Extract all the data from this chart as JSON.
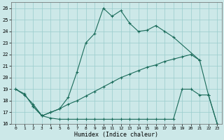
{
  "xlabel": "Humidex (Indice chaleur)",
  "bg_color": "#cce8e8",
  "grid_color": "#99cccc",
  "line_color": "#1a6b5a",
  "xlim": [
    -0.5,
    23.5
  ],
  "ylim": [
    16,
    26.5
  ],
  "xticks": [
    0,
    1,
    2,
    3,
    4,
    5,
    6,
    7,
    8,
    9,
    10,
    11,
    12,
    13,
    14,
    15,
    16,
    17,
    18,
    19,
    20,
    21,
    22,
    23
  ],
  "yticks": [
    16,
    17,
    18,
    19,
    20,
    21,
    22,
    23,
    24,
    25,
    26
  ],
  "line1_x": [
    0,
    1,
    2,
    3,
    4,
    5,
    6,
    7,
    8,
    9,
    10,
    11,
    12,
    13,
    14,
    15,
    16,
    17,
    18,
    21
  ],
  "line1_y": [
    19.0,
    18.6,
    17.5,
    16.7,
    17.0,
    17.3,
    18.3,
    20.5,
    23.0,
    23.8,
    26.0,
    25.3,
    25.8,
    24.7,
    24.0,
    24.1,
    24.5,
    24.0,
    23.5,
    21.5
  ],
  "line2_x": [
    0,
    1,
    2,
    3,
    4,
    5,
    6,
    7,
    8,
    9,
    10,
    11,
    12,
    13,
    14,
    15,
    16,
    17,
    18,
    19,
    20,
    21,
    22,
    23
  ],
  "line2_y": [
    19.0,
    18.5,
    17.7,
    16.7,
    17.0,
    17.3,
    17.7,
    18.0,
    18.4,
    18.8,
    19.2,
    19.6,
    20.0,
    20.3,
    20.6,
    20.9,
    21.1,
    21.4,
    21.6,
    21.8,
    22.0,
    21.5,
    18.5,
    16.0
  ],
  "line3_x": [
    2,
    3,
    4,
    5,
    6,
    7,
    8,
    9,
    10,
    11,
    12,
    13,
    14,
    15,
    16,
    17,
    18,
    19,
    20,
    21,
    22,
    23
  ],
  "line3_y": [
    17.5,
    16.7,
    16.5,
    16.4,
    16.4,
    16.4,
    16.4,
    16.4,
    16.4,
    16.4,
    16.4,
    16.4,
    16.4,
    16.4,
    16.4,
    16.4,
    16.4,
    19.0,
    19.0,
    18.5,
    18.5,
    16.0
  ]
}
